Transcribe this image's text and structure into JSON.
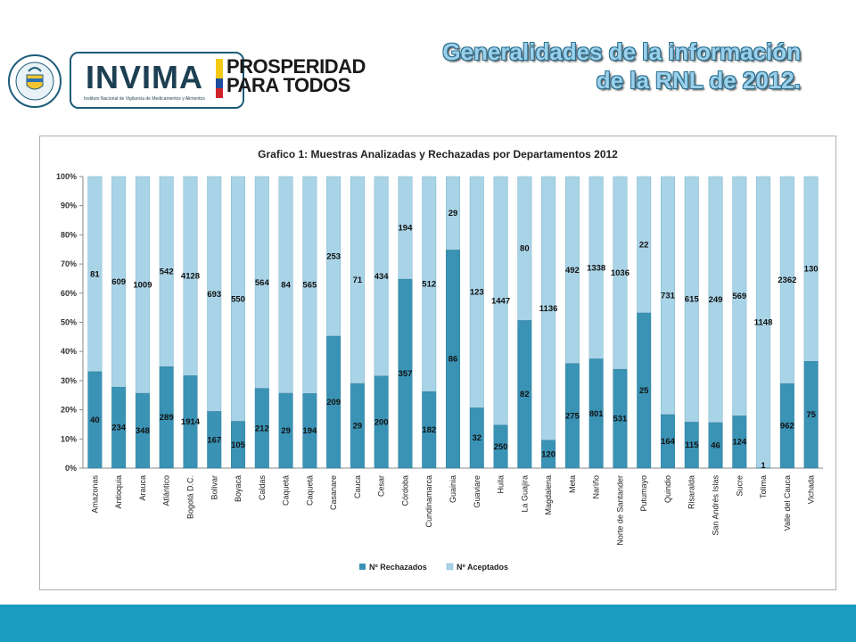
{
  "header": {
    "title_line1": "Generalidades de la información",
    "title_line2": "de la RNL de 2012."
  },
  "logos": {
    "seal_text_top": "REPÚBLICA",
    "seal_text_bottom": "DE COLOMBIA",
    "invima": "INVIMA",
    "invima_sub": "Instituto Nacional de Vigilancia de Medicamentos y Alimentos",
    "prosperidad_line1": "PROSPERIDAD",
    "prosperidad_line2": "PARA TODOS"
  },
  "colors": {
    "rechazados": "#3a93b5",
    "aceptados": "#a9d3e6",
    "bottom_bar": "#1b9cc1",
    "title_fill": "#9cd0ea"
  },
  "chart_data": {
    "type": "bar",
    "stacked": "100%",
    "title": "Grafico 1: Muestras Analizadas y Rechazadas por Departamentos 2012",
    "ylim": [
      0,
      100
    ],
    "yticks": [
      "0%",
      "10%",
      "20%",
      "30%",
      "40%",
      "50%",
      "60%",
      "70%",
      "80%",
      "90%",
      "100%"
    ],
    "legend_position": "bottom",
    "grid": false,
    "categories": [
      "Amazonas",
      "Antioquia",
      "Arauca",
      "Atlántico",
      "Bogotá D.C.",
      "Bolivar",
      "Boyacá",
      "Caldas",
      "Caquetá",
      "Caquetá",
      "Casanare",
      "Cauca",
      "Cesar",
      "Córdoba",
      "Cundinamarca",
      "Guainia",
      "Guaviare",
      "Huila",
      "La Guajira",
      "Magdalena",
      "Meta",
      "Nariño",
      "Norte de Santander",
      "Putumayo",
      "Quindio",
      "Risaralda",
      "San Andrés Islas",
      "Sucre",
      "Tolima",
      "Valle del Cauca",
      "Vichada"
    ],
    "series": [
      {
        "name": "Nº Rechazados",
        "values": [
          40,
          234,
          348,
          289,
          1914,
          167,
          105,
          212,
          29,
          194,
          209,
          29,
          200,
          357,
          182,
          86,
          32,
          250,
          82,
          120,
          275,
          801,
          531,
          25,
          164,
          115,
          46,
          124,
          1,
          962,
          75
        ]
      },
      {
        "name": "Nº Aceptados",
        "values": [
          81,
          609,
          1009,
          542,
          4128,
          693,
          550,
          564,
          84,
          565,
          253,
          71,
          434,
          194,
          512,
          29,
          123,
          1447,
          80,
          1136,
          492,
          1338,
          1036,
          22,
          731,
          615,
          249,
          569,
          1148,
          2362,
          130
        ]
      }
    ]
  }
}
